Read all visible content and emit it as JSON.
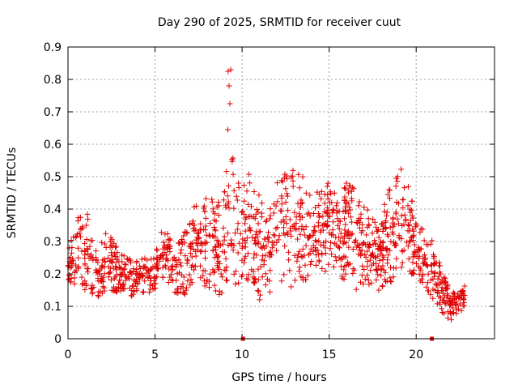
{
  "chart_data": {
    "type": "scatter",
    "title": "Day 290 of 2025, SRMTID for receiver cuut",
    "xlabel": "GPS time / hours",
    "ylabel": "SRMTID / TECUs",
    "xlim": [
      0,
      24.5
    ],
    "ylim": [
      0,
      0.9
    ],
    "xticks": [
      0,
      5,
      10,
      15,
      20
    ],
    "xtick_labels": [
      "0",
      "5",
      "10",
      "15",
      "20"
    ],
    "yticks": [
      0,
      0.1,
      0.2,
      0.3,
      0.4,
      0.5,
      0.6,
      0.7,
      0.8,
      0.9
    ],
    "ytick_labels": [
      "0",
      "0.1",
      "0.2",
      "0.3",
      "0.4",
      "0.5",
      "0.6",
      "0.7",
      "0.8",
      "0.9"
    ],
    "grid": true,
    "marker": "+",
    "color": "#e00000",
    "series": [
      {
        "name": "SRMTID",
        "envelope": {
          "x": [
            0,
            0.5,
            1,
            1.5,
            2,
            2.5,
            3,
            3.5,
            4,
            4.5,
            5,
            5.5,
            6,
            6.5,
            7,
            7.5,
            8,
            8.5,
            9,
            9.5,
            10,
            10.5,
            11,
            11.5,
            12,
            12.5,
            13,
            13.5,
            14,
            14.5,
            15,
            15.5,
            16,
            16.5,
            17,
            17.5,
            18,
            18.5,
            19,
            19.5,
            20,
            20.5,
            21,
            21.5,
            22,
            22.5,
            22.8
          ],
          "low": [
            0.15,
            0.12,
            0.14,
            0.12,
            0.14,
            0.15,
            0.14,
            0.13,
            0.13,
            0.14,
            0.15,
            0.17,
            0.14,
            0.12,
            0.15,
            0.17,
            0.16,
            0.14,
            0.13,
            0.16,
            0.18,
            0.14,
            0.12,
            0.14,
            0.16,
            0.15,
            0.15,
            0.16,
            0.2,
            0.22,
            0.2,
            0.18,
            0.16,
            0.15,
            0.17,
            0.15,
            0.15,
            0.17,
            0.2,
            0.2,
            0.2,
            0.15,
            0.11,
            0.07,
            0.05,
            0.07,
            0.1
          ],
          "high": [
            0.3,
            0.37,
            0.4,
            0.33,
            0.32,
            0.34,
            0.26,
            0.25,
            0.24,
            0.25,
            0.26,
            0.36,
            0.3,
            0.3,
            0.38,
            0.44,
            0.47,
            0.43,
            0.5,
            0.58,
            0.46,
            0.52,
            0.45,
            0.42,
            0.48,
            0.51,
            0.53,
            0.51,
            0.44,
            0.47,
            0.5,
            0.42,
            0.48,
            0.46,
            0.43,
            0.38,
            0.37,
            0.49,
            0.52,
            0.53,
            0.36,
            0.35,
            0.3,
            0.22,
            0.14,
            0.15,
            0.17
          ]
        },
        "spike": {
          "x": [
            9.2,
            9.25,
            9.3,
            9.18,
            9.35
          ],
          "y": [
            0.825,
            0.78,
            0.725,
            0.645,
            0.83
          ]
        },
        "zero_points": {
          "x": [
            10.05,
            20.9
          ],
          "y": [
            0,
            0
          ]
        }
      }
    ]
  }
}
